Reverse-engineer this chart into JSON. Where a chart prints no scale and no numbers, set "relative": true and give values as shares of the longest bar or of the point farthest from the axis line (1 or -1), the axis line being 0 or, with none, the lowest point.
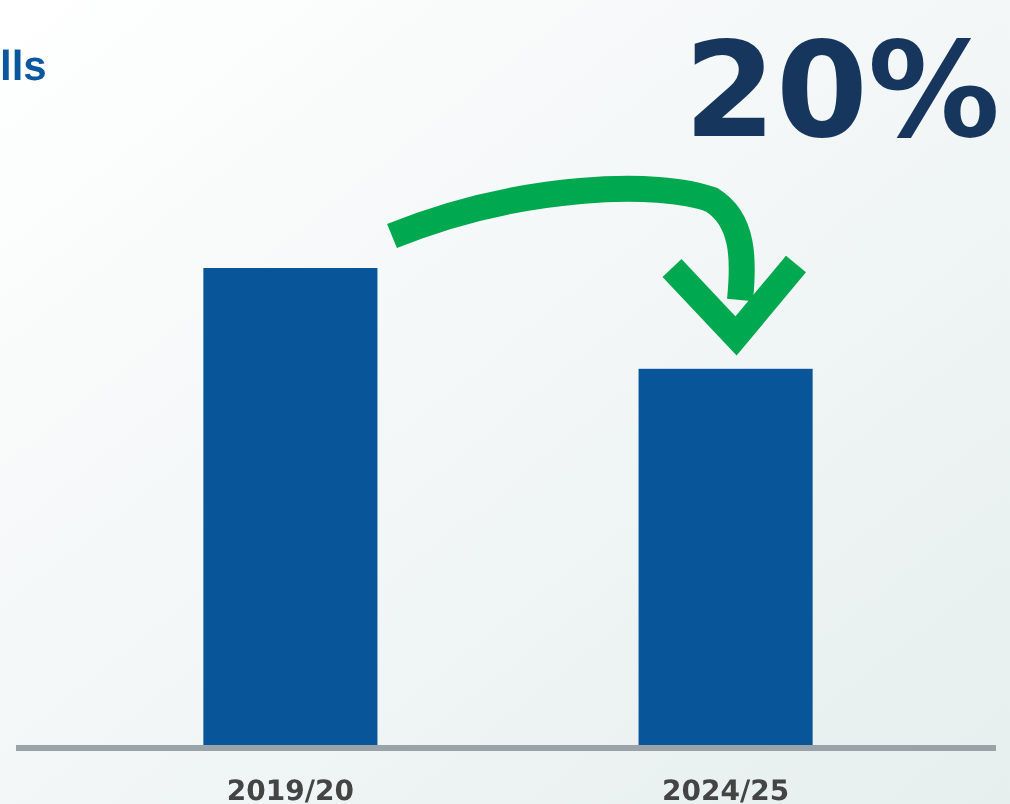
{
  "chart_data": {
    "type": "bar",
    "title": "lls",
    "relative": true,
    "categories": [
      "2019/20",
      "2024/25"
    ],
    "values": [
      1,
      0.79
    ],
    "color": "#08559a",
    "annotations": [
      "20%"
    ]
  }
}
